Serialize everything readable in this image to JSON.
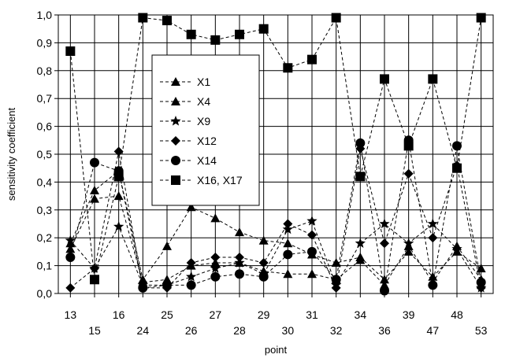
{
  "chart_data": {
    "type": "line",
    "xlabel": "point",
    "ylabel": "sensitivity coefficient",
    "ylim": [
      0.0,
      1.0
    ],
    "yticks": [
      "0,0",
      "0,1",
      "0,2",
      "0,3",
      "0,4",
      "0,5",
      "0,6",
      "0,7",
      "0,8",
      "0,9",
      "1,0"
    ],
    "categories": [
      "13",
      "15",
      "16",
      "24",
      "25",
      "26",
      "27",
      "28",
      "29",
      "30",
      "31",
      "32",
      "34",
      "36",
      "39",
      "47",
      "48",
      "53"
    ],
    "grid": true,
    "legend_position": "top-left",
    "series": [
      {
        "name": "X1",
        "marker": "triangle",
        "values": [
          0.18,
          0.37,
          0.44,
          0.05,
          0.17,
          0.31,
          0.27,
          0.22,
          0.19,
          0.18,
          0.14,
          0.11,
          0.13,
          0.05,
          0.15,
          0.06,
          0.15,
          0.09
        ]
      },
      {
        "name": "X4",
        "marker": "triangle",
        "values": [
          0.16,
          0.34,
          0.35,
          0.04,
          0.05,
          0.1,
          0.11,
          0.11,
          0.08,
          0.07,
          0.07,
          0.05,
          0.12,
          0.03,
          0.17,
          0.04,
          0.17,
          0.05
        ]
      },
      {
        "name": "X9",
        "marker": "star",
        "values": [
          0.19,
          0.09,
          0.24,
          0.03,
          0.03,
          0.06,
          0.09,
          0.11,
          0.07,
          0.23,
          0.26,
          0.03,
          0.18,
          0.25,
          0.18,
          0.25,
          0.16,
          0.02
        ]
      },
      {
        "name": "X12",
        "marker": "diamond",
        "values": [
          0.02,
          0.09,
          0.51,
          0.02,
          0.02,
          0.11,
          0.13,
          0.13,
          0.11,
          0.25,
          0.21,
          0.02,
          0.52,
          0.18,
          0.43,
          0.2,
          0.46,
          0.02
        ]
      },
      {
        "name": "X14",
        "marker": "circle",
        "values": [
          0.13,
          0.47,
          0.44,
          0.02,
          0.03,
          0.03,
          0.06,
          0.07,
          0.06,
          0.14,
          0.15,
          0.05,
          0.54,
          0.01,
          0.55,
          0.03,
          0.53,
          0.04
        ]
      },
      {
        "name": "X16, X17",
        "marker": "square",
        "values": [
          0.87,
          0.05,
          0.42,
          0.99,
          0.98,
          0.93,
          0.91,
          0.93,
          0.95,
          0.81,
          0.84,
          0.99,
          0.42,
          0.77,
          0.53,
          0.77,
          0.45,
          0.99
        ]
      }
    ]
  }
}
